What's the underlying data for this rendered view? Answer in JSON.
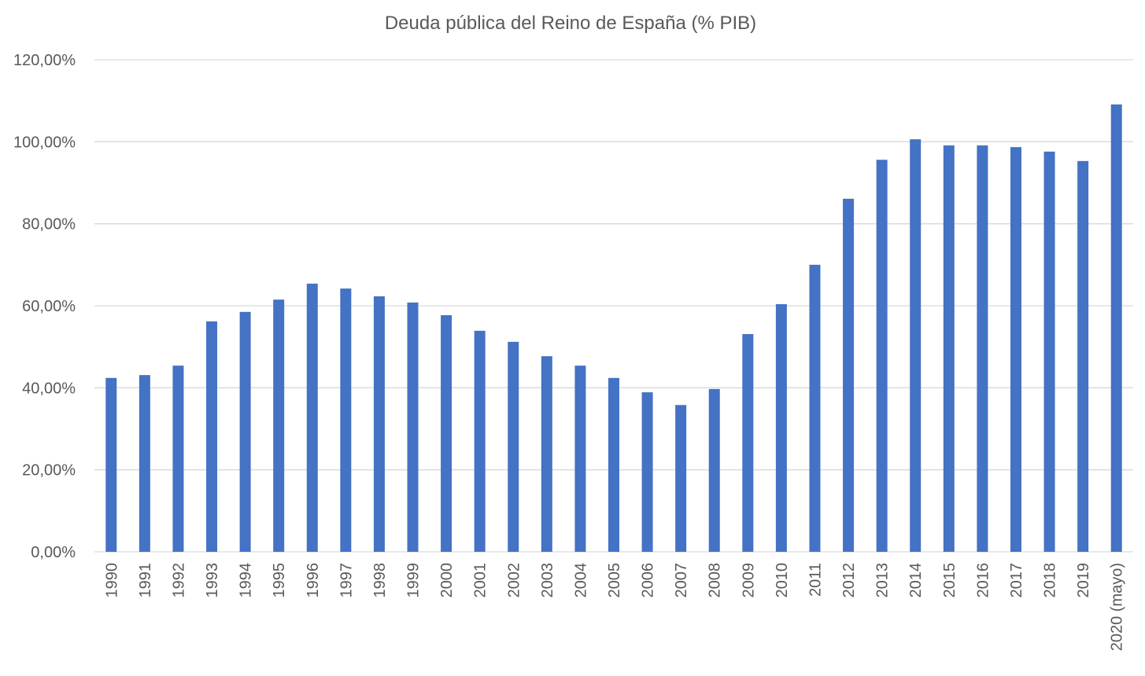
{
  "chart_data": {
    "type": "bar",
    "title": "Deuda pública del Reino de España (% PIB)",
    "xlabel": "",
    "ylabel": "",
    "ylim": [
      0,
      120
    ],
    "yticks": [
      0,
      20,
      40,
      60,
      80,
      100,
      120
    ],
    "ytick_labels": [
      "0,00%",
      "20,00%",
      "40,00%",
      "60,00%",
      "80,00%",
      "100,00%",
      "120,00%"
    ],
    "grid": true,
    "legend": "none",
    "bar_color": "#4472C4",
    "categories": [
      "1990",
      "1991",
      "1992",
      "1993",
      "1994",
      "1995",
      "1996",
      "1997",
      "1998",
      "1999",
      "2000",
      "2001",
      "2002",
      "2003",
      "2004",
      "2005",
      "2006",
      "2007",
      "2008",
      "2009",
      "2010",
      "2011",
      "2012",
      "2013",
      "2014",
      "2015",
      "2016",
      "2017",
      "2018",
      "2019",
      "2020 (mayo)"
    ],
    "values": [
      42.4,
      43.1,
      45.4,
      56.2,
      58.5,
      61.5,
      65.4,
      64.2,
      62.3,
      60.8,
      57.7,
      53.9,
      51.2,
      47.7,
      45.4,
      42.4,
      38.9,
      35.8,
      39.7,
      53.1,
      60.4,
      70.0,
      86.1,
      95.6,
      100.6,
      99.1,
      99.1,
      98.7,
      97.6,
      95.3,
      109.1
    ]
  }
}
